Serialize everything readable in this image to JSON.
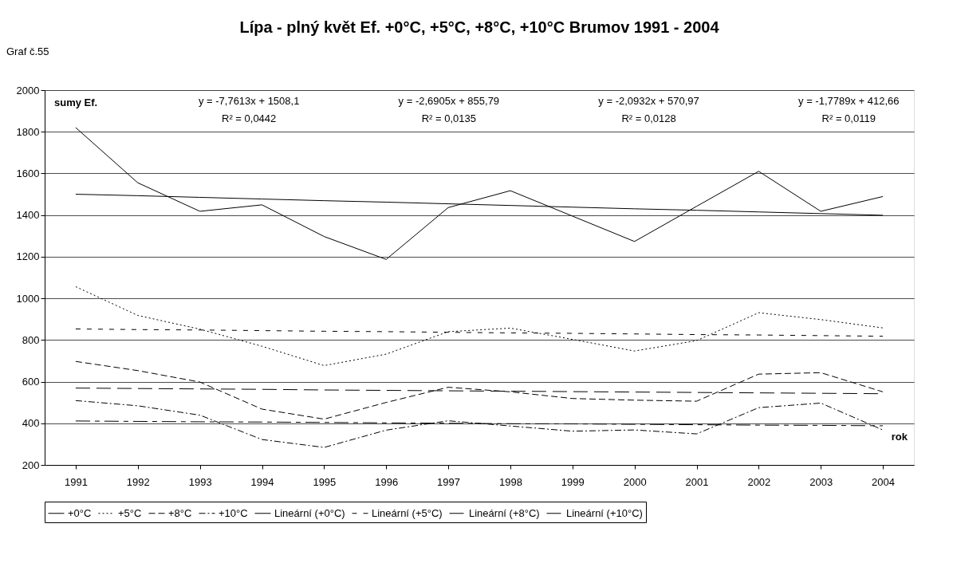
{
  "chart_data": {
    "type": "line",
    "title": "Lípa - plný květ Ef. +0°C, +5°C, +8°C, +10°C Brumov 1991 - 2004",
    "xlabel": "rok",
    "ylabel": "sumy Ef.",
    "annotations": [
      "Graf č.55",
      "y = -7,7613x + 1508,1",
      "R² = 0,0442",
      "y = -2,6905x + 855,79",
      "R² = 0,0135",
      "y = -2,0932x + 570,97",
      "R² = 0,0128",
      "y = -1,7789x + 412,66",
      "R² = 0,0119"
    ],
    "categories": [
      "1991",
      "1992",
      "1993",
      "1994",
      "1995",
      "1996",
      "1997",
      "1998",
      "1999",
      "2000",
      "2001",
      "2002",
      "2003",
      "2004"
    ],
    "ylim": [
      200,
      2000
    ],
    "yticks": [
      200,
      400,
      600,
      800,
      1000,
      1200,
      1400,
      1600,
      1800,
      2000
    ],
    "grid": "y",
    "legend": "bottom",
    "marker": "none",
    "series": [
      {
        "name": "+0°C",
        "color": "#000000",
        "line_style": "solid",
        "values": [
          1820,
          1555,
          1418,
          1449,
          1297,
          1187,
          1436,
          1517,
          1395,
          1273,
          1442,
          1610,
          1418,
          1489
        ]
      },
      {
        "name": "+5°C",
        "color": "#000000",
        "line_style": "dotted",
        "values": [
          1056,
          918,
          852,
          770,
          677,
          732,
          840,
          857,
          803,
          747,
          797,
          931,
          898,
          858
        ]
      },
      {
        "name": "+8°C",
        "color": "#000000",
        "line_style": "dashed",
        "values": [
          697,
          653,
          598,
          468,
          420,
          500,
          573,
          551,
          519,
          511,
          506,
          636,
          643,
          551
        ]
      },
      {
        "name": "+10°C",
        "color": "#000000",
        "line_style": "dashdot",
        "values": [
          509,
          484,
          439,
          322,
          284,
          367,
          412,
          387,
          362,
          368,
          349,
          475,
          497,
          368
        ]
      },
      {
        "name": "Lineární (+0°C)",
        "color": "#000000",
        "line_style": "solid",
        "values": [
          1500,
          1493,
          1485,
          1477,
          1469,
          1462,
          1454,
          1446,
          1438,
          1430,
          1423,
          1415,
          1407,
          1399
        ]
      },
      {
        "name": "Lineární (+5°C)",
        "color": "#000000",
        "line_style": "dotted",
        "values": [
          853,
          850,
          848,
          845,
          842,
          840,
          837,
          834,
          832,
          829,
          826,
          824,
          821,
          818
        ]
      },
      {
        "name": "Lineární (+8°C)",
        "color": "#000000",
        "line_style": "dashed",
        "values": [
          569,
          567,
          565,
          563,
          560,
          558,
          556,
          554,
          552,
          550,
          548,
          546,
          544,
          542
        ]
      },
      {
        "name": "Lineární (+10°C)",
        "color": "#000000",
        "line_style": "dashdot",
        "values": [
          411,
          409,
          407,
          406,
          404,
          402,
          400,
          398,
          397,
          395,
          393,
          391,
          390,
          388
        ]
      }
    ]
  }
}
